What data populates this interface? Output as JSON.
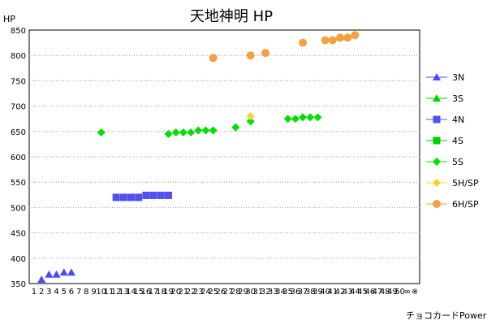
{
  "chart_data": {
    "type": "scatter",
    "title": "天地神明 HP",
    "ylabel": "HP",
    "ylim": [
      350,
      850
    ],
    "yticks": [
      350,
      400,
      450,
      500,
      550,
      600,
      650,
      700,
      750,
      800,
      850
    ],
    "x_tick_labels": [
      "1",
      "2",
      "3",
      "4",
      "5",
      "6",
      "7",
      "8",
      "9",
      "10",
      "11",
      "12",
      "13",
      "14",
      "15",
      "16",
      "17",
      "18",
      "19",
      "20",
      "21",
      "22",
      "23",
      "24",
      "25",
      "26",
      "27",
      "28",
      "29",
      "30",
      "31",
      "32",
      "33",
      "34",
      "35",
      "36",
      "37",
      "38",
      "39",
      "40",
      "41",
      "42",
      "43",
      "44",
      "45",
      "46",
      "47",
      "48",
      "49",
      "50",
      "∞",
      "※"
    ],
    "grid": "horizontal",
    "legend_position": "right",
    "credit": "チョコカードPower",
    "series": [
      {
        "name": "3N",
        "color": "#4A4AFF",
        "marker": "triangle",
        "points": [
          [
            2,
            358
          ],
          [
            3,
            368
          ],
          [
            4,
            368
          ],
          [
            5,
            372
          ],
          [
            6,
            372
          ]
        ]
      },
      {
        "name": "3S",
        "color": "#00D000",
        "marker": "triangle",
        "points": []
      },
      {
        "name": "4N",
        "color": "#5050F0",
        "marker": "square",
        "points": [
          [
            12,
            520
          ],
          [
            13,
            520
          ],
          [
            14,
            520
          ],
          [
            15,
            520
          ],
          [
            16,
            524
          ],
          [
            17,
            524
          ],
          [
            18,
            524
          ],
          [
            19,
            524
          ]
        ]
      },
      {
        "name": "4S",
        "color": "#00D000",
        "marker": "square",
        "points": []
      },
      {
        "name": "5S",
        "color": "#00E000",
        "marker": "diamond",
        "points": [
          [
            10,
            648
          ],
          [
            19,
            645
          ],
          [
            20,
            648
          ],
          [
            21,
            648
          ],
          [
            22,
            648
          ],
          [
            23,
            652
          ],
          [
            24,
            652
          ],
          [
            25,
            652
          ],
          [
            28,
            658
          ],
          [
            30,
            670
          ],
          [
            35,
            675
          ],
          [
            36,
            675
          ],
          [
            37,
            678
          ],
          [
            38,
            678
          ],
          [
            39,
            678
          ]
        ]
      },
      {
        "name": "5H/SP",
        "color": "#FFD030",
        "marker": "diamond",
        "points": [
          [
            30,
            680
          ]
        ]
      },
      {
        "name": "6H/SP",
        "color": "#F5A040",
        "marker": "circle",
        "points": [
          [
            25,
            795
          ],
          [
            30,
            800
          ],
          [
            32,
            805
          ],
          [
            37,
            825
          ],
          [
            40,
            830
          ],
          [
            41,
            830
          ],
          [
            42,
            835
          ],
          [
            43,
            835
          ],
          [
            44,
            840
          ]
        ]
      }
    ]
  }
}
